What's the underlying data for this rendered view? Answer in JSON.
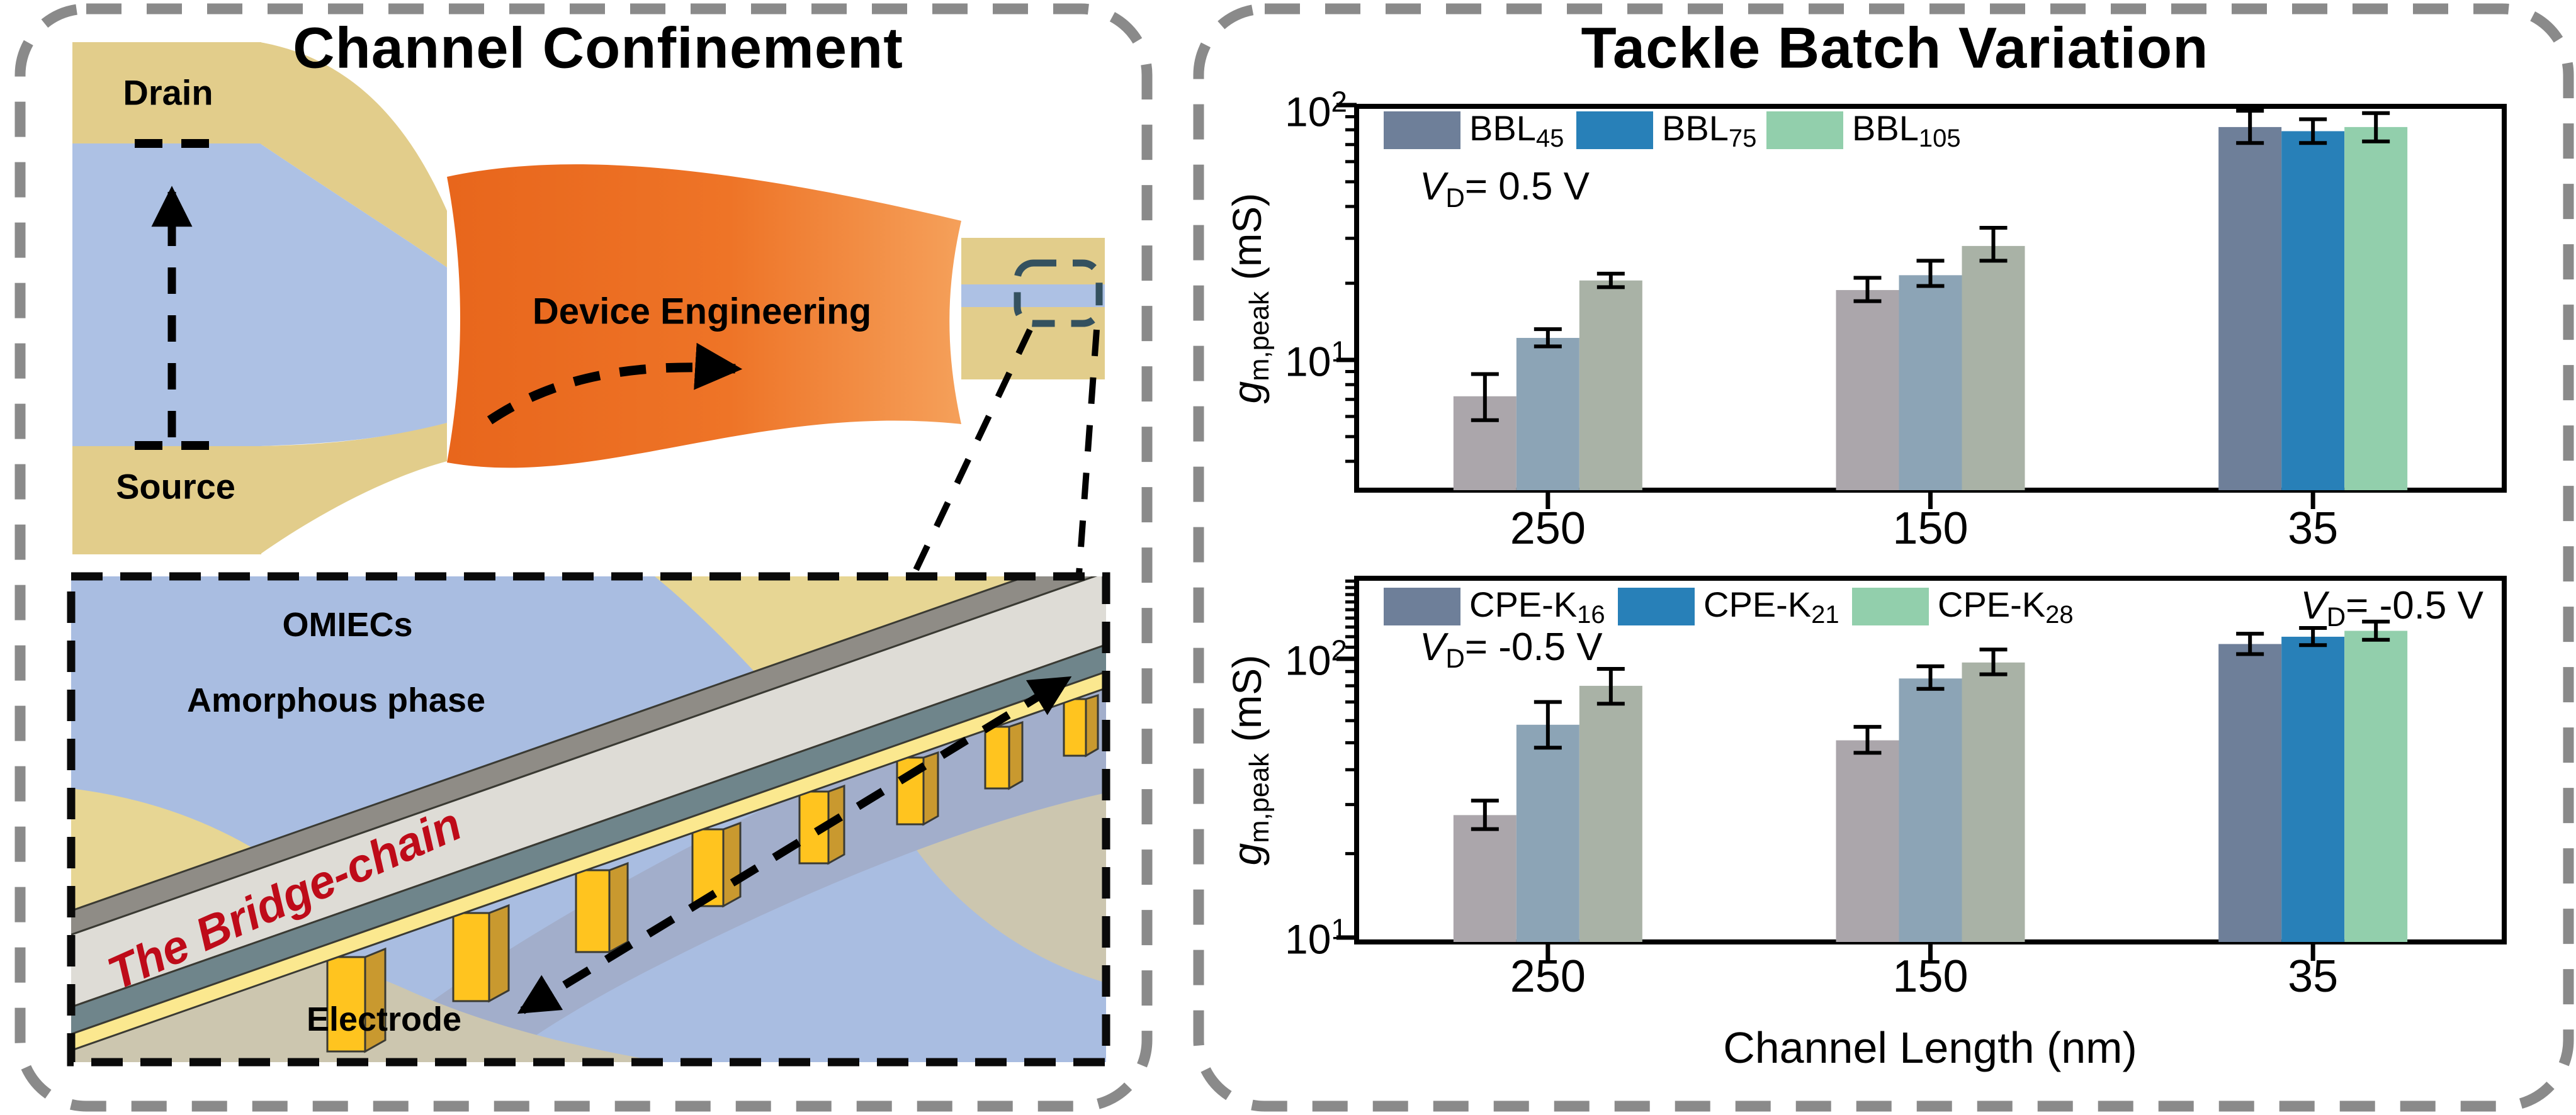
{
  "left_panel": {
    "title": "Channel Confinement",
    "device": {
      "drain_label": "Drain",
      "source_label": "Source",
      "funnel_label": "Device Engineering"
    },
    "inset": {
      "omiecs_label": "OMIECs",
      "amorphous_label": "Amorphous phase",
      "bridge_label": "The Bridge-chain",
      "electrode_label": "Electrode"
    }
  },
  "right_panel": {
    "title": "Tackle Batch Variation"
  },
  "chart_data": [
    {
      "type": "bar",
      "title": "Tackle Batch Variation (top, BBL batches)",
      "categories": [
        "250",
        "150",
        "35"
      ],
      "xlabel": "",
      "ylabel": "g_m,peak (mS)",
      "ylabel_parts": {
        "g": "g",
        "sub": "m,peak",
        "rest": " (mS)"
      },
      "yscale": "log",
      "ylim": [
        3.1,
        100
      ],
      "grid": false,
      "legend_position": "inside top-left",
      "annotation_vd": {
        "v": "V",
        "sub": "D",
        "rest": "= 0.5 V"
      },
      "yticks": [
        {
          "base": "10",
          "exp": "1",
          "value": 10
        },
        {
          "base": "10",
          "exp": "2",
          "value": 100
        }
      ],
      "minor_ticks": [
        4,
        5,
        6,
        7,
        8,
        9,
        20,
        30,
        40,
        50,
        60,
        70,
        80,
        90
      ],
      "muted_categories": [
        "250",
        "150"
      ],
      "series": [
        {
          "name": "BBL45",
          "label_main": "BBL",
          "label_sub": "45",
          "color": "#6e7f99",
          "muted_color": "#aba6ab",
          "values": [
            7.2,
            18.8,
            82
          ],
          "err_lo": [
            5.8,
            17.0,
            71
          ],
          "err_hi": [
            8.8,
            21.0,
            95
          ]
        },
        {
          "name": "BBL75",
          "label_main": "BBL",
          "label_sub": "75",
          "color": "#2880b8",
          "muted_color": "#8ca4b6",
          "values": [
            12.2,
            21.5,
            79
          ],
          "err_lo": [
            11.3,
            19.5,
            71
          ],
          "err_hi": [
            13.2,
            24.5,
            88
          ]
        },
        {
          "name": "BBL105",
          "label_main": "BBL",
          "label_sub": "105",
          "color": "#92cfac",
          "muted_color": "#a9b2a6",
          "values": [
            20.5,
            28.0,
            82
          ],
          "err_lo": [
            19.3,
            24.5,
            72
          ],
          "err_hi": [
            21.8,
            33.0,
            93
          ]
        }
      ]
    },
    {
      "type": "bar",
      "title": "Tackle Batch Variation (bottom, CPE-K batches)",
      "categories": [
        "250",
        "150",
        "35"
      ],
      "xlabel": "Channel Length (nm)",
      "ylabel": "g_m,peak (mS)",
      "ylabel_parts": {
        "g": "g",
        "sub": "m,peak",
        "rest": " (mS)"
      },
      "yscale": "log",
      "ylim": [
        9.6,
        195
      ],
      "grid": false,
      "legend_position": "inside top-left",
      "annotation_vd_left": {
        "v": "V",
        "sub": "D",
        "rest": "= -0.5 V"
      },
      "annotation_vd_right": {
        "v": "V",
        "sub": "D",
        "rest": "= -0.5 V"
      },
      "yticks": [
        {
          "base": "10",
          "exp": "1",
          "value": 10
        },
        {
          "base": "10",
          "exp": "2",
          "value": 100
        }
      ],
      "minor_ticks": [
        20,
        30,
        40,
        50,
        60,
        70,
        80,
        90,
        110,
        120,
        130,
        140,
        150,
        160,
        170,
        180,
        190
      ],
      "muted_categories": [
        "250",
        "150"
      ],
      "series": [
        {
          "name": "CPE-K16",
          "label_main": "CPE-K",
          "label_sub": "16",
          "color": "#6e7f99",
          "muted_color": "#aba6ab",
          "values": [
            27.5,
            51,
            113
          ],
          "err_lo": [
            24.5,
            46,
            104
          ],
          "err_hi": [
            31,
            57,
            123
          ]
        },
        {
          "name": "CPE-K21",
          "label_main": "CPE-K",
          "label_sub": "21",
          "color": "#2880b8",
          "muted_color": "#8ca4b6",
          "values": [
            58,
            85,
            120
          ],
          "err_lo": [
            48,
            78,
            112
          ],
          "err_hi": [
            70,
            94,
            129
          ]
        },
        {
          "name": "CPE-K28",
          "label_main": "CPE-K",
          "label_sub": "28",
          "color": "#92cfac",
          "muted_color": "#a9b2a6",
          "values": [
            80,
            97,
            126
          ],
          "err_lo": [
            69,
            88,
            117
          ],
          "err_hi": [
            92,
            108,
            136
          ]
        }
      ]
    }
  ],
  "palette": {
    "electrode_tan": "#e2cd8b",
    "channel_blue": "#adc1e4",
    "funnel_orange_dark": "#e8661c",
    "funnel_orange_light": "#f5a05a",
    "inset_blue": "#a9bde1",
    "inset_tan": "#e7d694",
    "inset_ground": "#ccc6af",
    "inset_shadow": "#a2aecb",
    "deck_dark": "#8f8c86",
    "deck_light": "#dedcd6",
    "deck_teal": "#6f858b",
    "deck_yellow": "#fbe88f",
    "pillar_gold": "#ffc41f",
    "pillar_side": "#c9992f",
    "bridge_text_red": "#be0b19",
    "panel_border_gray": "#8a8a8a",
    "highlight_navy": "#34515f"
  }
}
